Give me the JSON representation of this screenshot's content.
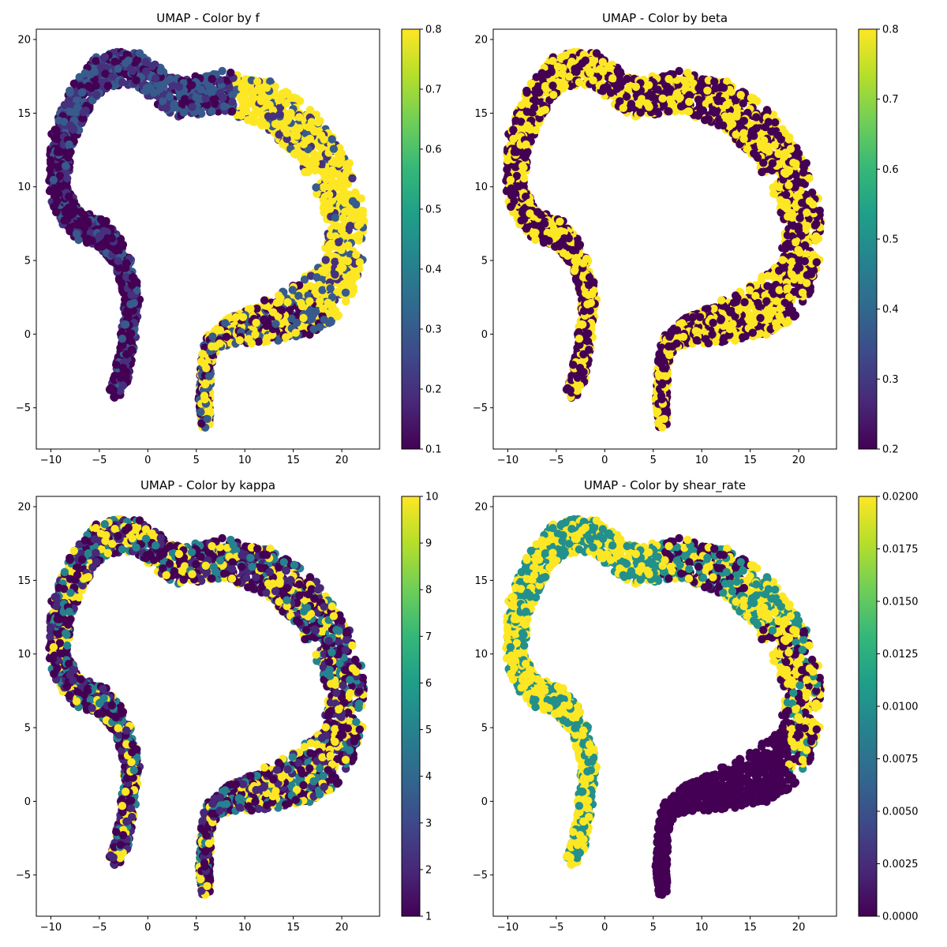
{
  "chart_data": [
    {
      "type": "scatter",
      "title": "UMAP - Color by f",
      "xlabel": "",
      "ylabel": "",
      "xlim": [
        -11.5,
        23.9
      ],
      "ylim": [
        -7.8,
        20.7
      ],
      "xticks": [
        -10,
        -5,
        0,
        5,
        10,
        15,
        20
      ],
      "yticks": [
        -5,
        0,
        5,
        10,
        15,
        20
      ],
      "colorbar": {
        "min": 0.1,
        "max": 0.8,
        "ticks": [
          "0.1",
          "0.2",
          "0.3",
          "0.4",
          "0.5",
          "0.6",
          "0.7",
          "0.8"
        ]
      },
      "levels": [
        0.1,
        0.2,
        0.3,
        0.8
      ],
      "coloring": "f",
      "grid": false,
      "colormap": "viridis"
    },
    {
      "type": "scatter",
      "title": "UMAP - Color by beta",
      "xlabel": "",
      "ylabel": "",
      "xlim": [
        -11.5,
        23.9
      ],
      "ylim": [
        -7.8,
        20.7
      ],
      "xticks": [
        -10,
        -5,
        0,
        5,
        10,
        15,
        20
      ],
      "yticks": [
        -5,
        0,
        5,
        10,
        15,
        20
      ],
      "colorbar": {
        "min": 0.2,
        "max": 0.8,
        "ticks": [
          "0.2",
          "0.3",
          "0.4",
          "0.5",
          "0.6",
          "0.7",
          "0.8"
        ]
      },
      "levels": [
        0.2,
        0.8
      ],
      "coloring": "beta",
      "grid": false,
      "colormap": "viridis"
    },
    {
      "type": "scatter",
      "title": "UMAP - Color by kappa",
      "xlabel": "",
      "ylabel": "",
      "xlim": [
        -11.5,
        23.9
      ],
      "ylim": [
        -7.8,
        20.7
      ],
      "xticks": [
        -10,
        -5,
        0,
        5,
        10,
        15,
        20
      ],
      "yticks": [
        -5,
        0,
        5,
        10,
        15,
        20
      ],
      "colorbar": {
        "min": 1,
        "max": 10,
        "ticks": [
          "1",
          "2",
          "3",
          "4",
          "5",
          "6",
          "7",
          "8",
          "9",
          "10"
        ]
      },
      "levels": [
        1,
        2,
        5,
        10
      ],
      "coloring": "kappa",
      "grid": false,
      "colormap": "viridis"
    },
    {
      "type": "scatter",
      "title": "UMAP - Color by shear_rate",
      "xlabel": "",
      "ylabel": "",
      "xlim": [
        -11.5,
        23.9
      ],
      "ylim": [
        -7.8,
        20.7
      ],
      "xticks": [
        -10,
        -5,
        0,
        5,
        10,
        15,
        20
      ],
      "yticks": [
        -5,
        0,
        5,
        10,
        15,
        20
      ],
      "colorbar": {
        "min": 0.0,
        "max": 0.02,
        "ticks": [
          "0.0000",
          "0.0025",
          "0.0050",
          "0.0075",
          "0.0100",
          "0.0125",
          "0.0150",
          "0.0175",
          "0.0200"
        ]
      },
      "levels": [
        0.0,
        0.01,
        0.02
      ],
      "coloring": "shear_rate",
      "grid": false,
      "colormap": "viridis"
    }
  ],
  "embedding_shape": {
    "centerline": [
      [
        -3.5,
        -4.3
      ],
      [
        -2.6,
        -2.5
      ],
      [
        -2.0,
        0.0
      ],
      [
        -1.6,
        2.5
      ],
      [
        -2.6,
        5.0
      ],
      [
        -4.5,
        6.8
      ],
      [
        -7.5,
        7.5
      ],
      [
        -9.2,
        9.5
      ],
      [
        -9.0,
        13.0
      ],
      [
        -7.0,
        16.0
      ],
      [
        -4.5,
        18.0
      ],
      [
        -1.0,
        18.0
      ],
      [
        3.0,
        16.0
      ],
      [
        8.0,
        16.5
      ],
      [
        13.0,
        15.5
      ],
      [
        17.0,
        13.0
      ],
      [
        20.0,
        9.5
      ],
      [
        20.5,
        6.0
      ],
      [
        19.0,
        3.0
      ],
      [
        15.5,
        1.5
      ],
      [
        12.0,
        0.8
      ],
      [
        8.5,
        0.2
      ],
      [
        6.8,
        -0.3
      ],
      [
        6.0,
        -2.0
      ],
      [
        5.8,
        -4.5
      ],
      [
        6.0,
        -6.2
      ]
    ],
    "half_width": [
      0.6,
      0.8,
      0.8,
      0.8,
      0.9,
      1.0,
      1.0,
      1.0,
      1.1,
      1.2,
      1.2,
      1.1,
      1.3,
      1.4,
      1.6,
      1.9,
      2.0,
      2.0,
      2.0,
      1.9,
      1.4,
      0.9,
      0.8,
      0.6,
      0.6,
      0.5
    ],
    "point_count": 3000
  }
}
